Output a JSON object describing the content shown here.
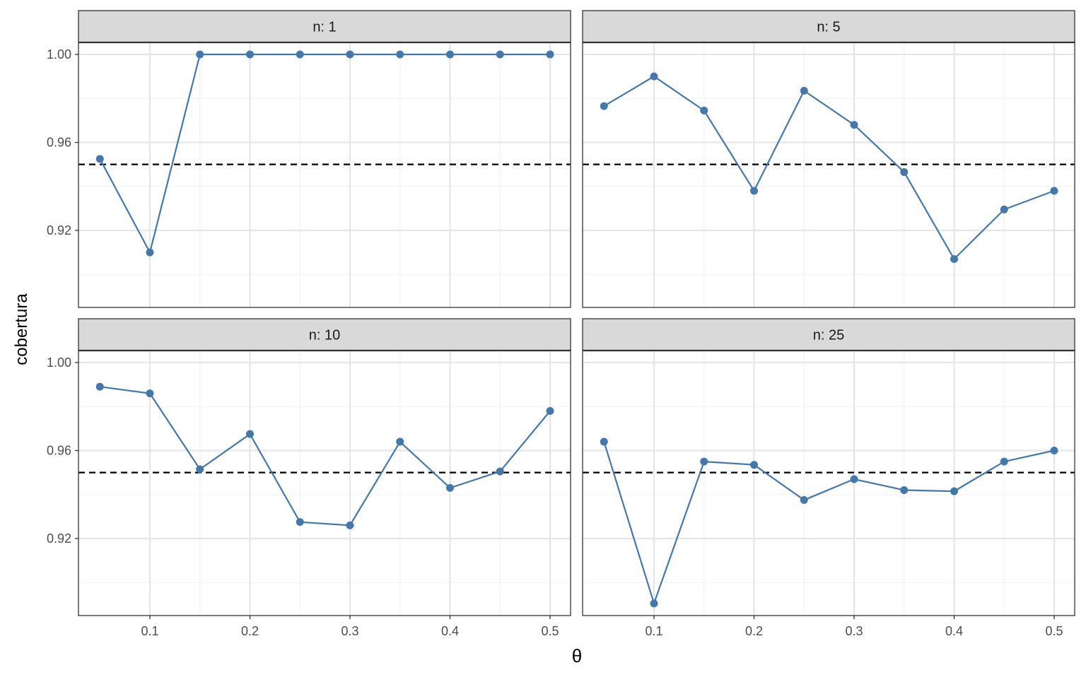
{
  "chart_data": {
    "type": "line",
    "layout": "facet-grid-2x2",
    "xlabel": "θ",
    "ylabel": "cobertura",
    "x_ticks": [
      "0.1",
      "0.2",
      "0.3",
      "0.4",
      "0.5"
    ],
    "y_ticks": [
      "0.92",
      "0.96",
      "1.00"
    ],
    "xlim": [
      0.05,
      0.5
    ],
    "ylim": [
      0.89,
      1.0
    ],
    "reference_line": {
      "y": 0.95,
      "style": "dashed"
    },
    "grid": true,
    "series_color": "#4477AA",
    "facets": [
      {
        "label": "n: 1",
        "x": [
          0.05,
          0.1,
          0.15,
          0.2,
          0.25,
          0.3,
          0.35,
          0.4,
          0.45,
          0.5
        ],
        "values": [
          0.9525,
          0.91,
          1.0,
          1.0,
          1.0,
          1.0,
          1.0,
          1.0,
          1.0,
          1.0
        ]
      },
      {
        "label": "n: 5",
        "x": [
          0.05,
          0.1,
          0.15,
          0.2,
          0.25,
          0.3,
          0.35,
          0.4,
          0.45,
          0.5
        ],
        "values": [
          0.9765,
          0.99,
          0.9745,
          0.938,
          0.9835,
          0.968,
          0.9465,
          0.907,
          0.9295,
          0.938
        ]
      },
      {
        "label": "n: 10",
        "x": [
          0.05,
          0.1,
          0.15,
          0.2,
          0.25,
          0.3,
          0.35,
          0.4,
          0.45,
          0.5
        ],
        "values": [
          0.989,
          0.986,
          0.9515,
          0.9675,
          0.9275,
          0.926,
          0.964,
          0.943,
          0.9505,
          0.978
        ]
      },
      {
        "label": "n: 25",
        "x": [
          0.05,
          0.1,
          0.15,
          0.2,
          0.25,
          0.3,
          0.35,
          0.4,
          0.45,
          0.5
        ],
        "values": [
          0.964,
          0.8905,
          0.955,
          0.9535,
          0.9375,
          0.947,
          0.942,
          0.9415,
          0.955,
          0.96
        ]
      }
    ]
  }
}
